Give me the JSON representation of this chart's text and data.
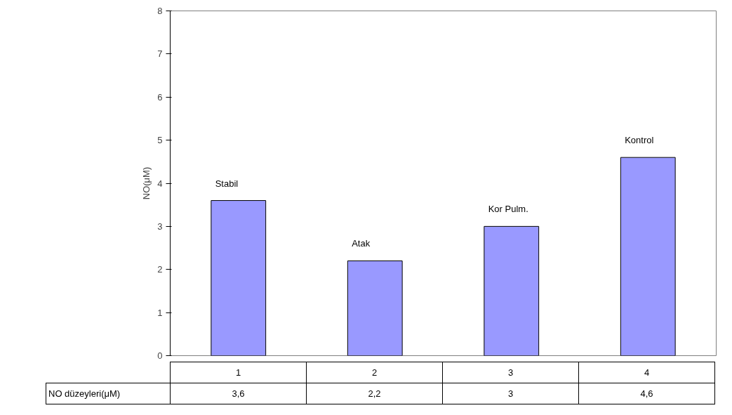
{
  "chart_data": {
    "type": "bar",
    "ylabel": "NO(μM)",
    "categories": [
      "1",
      "2",
      "3",
      "4"
    ],
    "series": [
      {
        "name": "NO düzeyleri(μM)",
        "color": "#9999ff",
        "values": [
          3.6,
          2.2,
          3,
          4.6
        ],
        "value_labels": [
          "3,6",
          "2,2",
          "3",
          "4,6"
        ]
      }
    ],
    "ylim": [
      0,
      8
    ],
    "yticks": [
      0,
      1,
      2,
      3,
      4,
      5,
      6,
      7,
      8
    ],
    "grid": false,
    "annotations": [
      "Stabil",
      "Atak",
      "Kor Pulm.",
      "Kontrol"
    ]
  }
}
